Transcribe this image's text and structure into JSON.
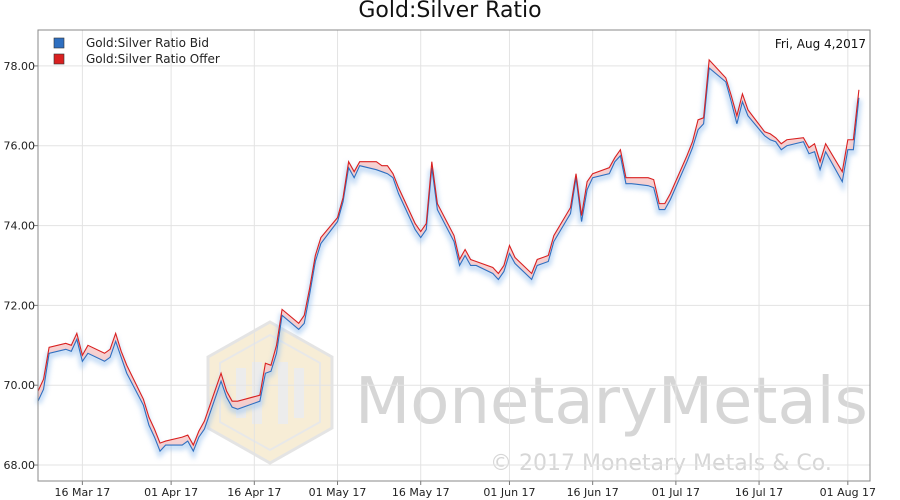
{
  "chart_data": {
    "type": "line",
    "title": "Gold:Silver Ratio",
    "date_label": "Fri, Aug 4,2017",
    "x_tick_labels": [
      "16 Mar 17",
      "01 Apr 17",
      "16 Apr 17",
      "01 May 17",
      "16 May 17",
      "01 Jun 17",
      "16 Jun 17",
      "01 Jul 17",
      "16 Jul 17",
      "01 Aug 17"
    ],
    "y_tick_labels": [
      "68.00",
      "70.00",
      "72.00",
      "74.00",
      "76.00",
      "78.00"
    ],
    "ylim": [
      67.6,
      78.9
    ],
    "xlim": [
      "2017-03-08",
      "2017-08-05"
    ],
    "grid": true,
    "legend_position": "top-left",
    "series": [
      {
        "name": "Gold:Silver Ratio Bid",
        "color": "#2e6fc0",
        "points": [
          [
            "2017-03-08",
            69.6
          ],
          [
            "2017-03-09",
            69.9
          ],
          [
            "2017-03-10",
            70.8
          ],
          [
            "2017-03-13",
            70.9
          ],
          [
            "2017-03-14",
            70.85
          ],
          [
            "2017-03-15",
            71.15
          ],
          [
            "2017-03-16",
            70.6
          ],
          [
            "2017-03-17",
            70.8
          ],
          [
            "2017-03-20",
            70.6
          ],
          [
            "2017-03-21",
            70.7
          ],
          [
            "2017-03-22",
            71.1
          ],
          [
            "2017-03-23",
            70.7
          ],
          [
            "2017-03-24",
            70.3
          ],
          [
            "2017-03-27",
            69.5
          ],
          [
            "2017-03-28",
            69.0
          ],
          [
            "2017-03-29",
            68.7
          ],
          [
            "2017-03-30",
            68.35
          ],
          [
            "2017-03-31",
            68.5
          ],
          [
            "2017-04-03",
            68.5
          ],
          [
            "2017-04-04",
            68.6
          ],
          [
            "2017-04-05",
            68.35
          ],
          [
            "2017-04-06",
            68.7
          ],
          [
            "2017-04-07",
            68.9
          ],
          [
            "2017-04-10",
            70.1
          ],
          [
            "2017-04-11",
            69.7
          ],
          [
            "2017-04-12",
            69.45
          ],
          [
            "2017-04-13",
            69.4
          ],
          [
            "2017-04-17",
            69.6
          ],
          [
            "2017-04-18",
            70.3
          ],
          [
            "2017-04-19",
            70.35
          ],
          [
            "2017-04-20",
            70.8
          ],
          [
            "2017-04-21",
            71.75
          ],
          [
            "2017-04-24",
            71.4
          ],
          [
            "2017-04-25",
            71.55
          ],
          [
            "2017-04-26",
            72.3
          ],
          [
            "2017-04-27",
            73.1
          ],
          [
            "2017-04-28",
            73.55
          ],
          [
            "2017-05-01",
            74.1
          ],
          [
            "2017-05-02",
            74.6
          ],
          [
            "2017-05-03",
            75.45
          ],
          [
            "2017-05-04",
            75.2
          ],
          [
            "2017-05-05",
            75.5
          ],
          [
            "2017-05-08",
            75.4
          ],
          [
            "2017-05-09",
            75.35
          ],
          [
            "2017-05-10",
            75.3
          ],
          [
            "2017-05-11",
            75.2
          ],
          [
            "2017-05-12",
            74.8
          ],
          [
            "2017-05-15",
            73.9
          ],
          [
            "2017-05-16",
            73.7
          ],
          [
            "2017-05-17",
            73.9
          ],
          [
            "2017-05-18",
            75.45
          ],
          [
            "2017-05-19",
            74.4
          ],
          [
            "2017-05-22",
            73.6
          ],
          [
            "2017-05-23",
            73.0
          ],
          [
            "2017-05-24",
            73.25
          ],
          [
            "2017-05-25",
            73.0
          ],
          [
            "2017-05-26",
            73.0
          ],
          [
            "2017-05-29",
            72.8
          ],
          [
            "2017-05-30",
            72.65
          ],
          [
            "2017-05-31",
            72.85
          ],
          [
            "2017-06-01",
            73.3
          ],
          [
            "2017-06-02",
            73.05
          ],
          [
            "2017-06-05",
            72.65
          ],
          [
            "2017-06-06",
            73.0
          ],
          [
            "2017-06-07",
            73.05
          ],
          [
            "2017-06-08",
            73.1
          ],
          [
            "2017-06-09",
            73.6
          ],
          [
            "2017-06-12",
            74.3
          ],
          [
            "2017-06-13",
            75.2
          ],
          [
            "2017-06-14",
            74.1
          ],
          [
            "2017-06-15",
            74.9
          ],
          [
            "2017-06-16",
            75.2
          ],
          [
            "2017-06-19",
            75.3
          ],
          [
            "2017-06-20",
            75.6
          ],
          [
            "2017-06-21",
            75.75
          ],
          [
            "2017-06-22",
            75.05
          ],
          [
            "2017-06-23",
            75.05
          ],
          [
            "2017-06-26",
            75.0
          ],
          [
            "2017-06-27",
            74.95
          ],
          [
            "2017-06-28",
            74.4
          ],
          [
            "2017-06-29",
            74.4
          ],
          [
            "2017-06-30",
            74.65
          ],
          [
            "2017-07-03",
            75.6
          ],
          [
            "2017-07-04",
            75.95
          ],
          [
            "2017-07-05",
            76.4
          ],
          [
            "2017-07-06",
            76.55
          ],
          [
            "2017-07-07",
            77.95
          ],
          [
            "2017-07-10",
            77.6
          ],
          [
            "2017-07-11",
            77.1
          ],
          [
            "2017-07-12",
            76.55
          ],
          [
            "2017-07-13",
            77.1
          ],
          [
            "2017-07-14",
            76.75
          ],
          [
            "2017-07-17",
            76.25
          ],
          [
            "2017-07-18",
            76.15
          ],
          [
            "2017-07-19",
            76.1
          ],
          [
            "2017-07-20",
            75.9
          ],
          [
            "2017-07-21",
            76.0
          ],
          [
            "2017-07-24",
            76.1
          ],
          [
            "2017-07-25",
            75.8
          ],
          [
            "2017-07-26",
            75.85
          ],
          [
            "2017-07-27",
            75.4
          ],
          [
            "2017-07-28",
            75.85
          ],
          [
            "2017-07-31",
            75.1
          ],
          [
            "2017-08-01",
            75.9
          ],
          [
            "2017-08-02",
            75.9
          ],
          [
            "2017-08-03",
            77.2
          ]
        ]
      },
      {
        "name": "Gold:Silver Ratio Offer",
        "color": "#d92020",
        "points": [
          [
            "2017-03-08",
            69.85
          ],
          [
            "2017-03-09",
            70.15
          ],
          [
            "2017-03-10",
            70.95
          ],
          [
            "2017-03-13",
            71.05
          ],
          [
            "2017-03-14",
            71.0
          ],
          [
            "2017-03-15",
            71.3
          ],
          [
            "2017-03-16",
            70.75
          ],
          [
            "2017-03-17",
            71.0
          ],
          [
            "2017-03-20",
            70.8
          ],
          [
            "2017-03-21",
            70.9
          ],
          [
            "2017-03-22",
            71.3
          ],
          [
            "2017-03-23",
            70.85
          ],
          [
            "2017-03-24",
            70.5
          ],
          [
            "2017-03-27",
            69.65
          ],
          [
            "2017-03-28",
            69.2
          ],
          [
            "2017-03-29",
            68.9
          ],
          [
            "2017-03-30",
            68.55
          ],
          [
            "2017-03-31",
            68.6
          ],
          [
            "2017-04-03",
            68.7
          ],
          [
            "2017-04-04",
            68.75
          ],
          [
            "2017-04-05",
            68.5
          ],
          [
            "2017-04-06",
            68.85
          ],
          [
            "2017-04-07",
            69.1
          ],
          [
            "2017-04-10",
            70.3
          ],
          [
            "2017-04-11",
            69.85
          ],
          [
            "2017-04-12",
            69.6
          ],
          [
            "2017-04-13",
            69.6
          ],
          [
            "2017-04-17",
            69.75
          ],
          [
            "2017-04-18",
            70.55
          ],
          [
            "2017-04-19",
            70.5
          ],
          [
            "2017-04-20",
            71.0
          ],
          [
            "2017-04-21",
            71.9
          ],
          [
            "2017-04-24",
            71.55
          ],
          [
            "2017-04-25",
            71.75
          ],
          [
            "2017-04-26",
            72.45
          ],
          [
            "2017-04-27",
            73.25
          ],
          [
            "2017-04-28",
            73.7
          ],
          [
            "2017-05-01",
            74.2
          ],
          [
            "2017-05-02",
            74.7
          ],
          [
            "2017-05-03",
            75.6
          ],
          [
            "2017-05-04",
            75.35
          ],
          [
            "2017-05-05",
            75.6
          ],
          [
            "2017-05-08",
            75.6
          ],
          [
            "2017-05-09",
            75.5
          ],
          [
            "2017-05-10",
            75.5
          ],
          [
            "2017-05-11",
            75.3
          ],
          [
            "2017-05-12",
            74.95
          ],
          [
            "2017-05-15",
            74.05
          ],
          [
            "2017-05-16",
            73.85
          ],
          [
            "2017-05-17",
            74.05
          ],
          [
            "2017-05-18",
            75.6
          ],
          [
            "2017-05-19",
            74.55
          ],
          [
            "2017-05-22",
            73.75
          ],
          [
            "2017-05-23",
            73.15
          ],
          [
            "2017-05-24",
            73.4
          ],
          [
            "2017-05-25",
            73.15
          ],
          [
            "2017-05-26",
            73.1
          ],
          [
            "2017-05-29",
            72.95
          ],
          [
            "2017-05-30",
            72.8
          ],
          [
            "2017-05-31",
            73.0
          ],
          [
            "2017-06-01",
            73.5
          ],
          [
            "2017-06-02",
            73.2
          ],
          [
            "2017-06-05",
            72.8
          ],
          [
            "2017-06-06",
            73.15
          ],
          [
            "2017-06-07",
            73.2
          ],
          [
            "2017-06-08",
            73.25
          ],
          [
            "2017-06-09",
            73.75
          ],
          [
            "2017-06-12",
            74.45
          ],
          [
            "2017-06-13",
            75.3
          ],
          [
            "2017-06-14",
            74.25
          ],
          [
            "2017-06-15",
            75.1
          ],
          [
            "2017-06-16",
            75.3
          ],
          [
            "2017-06-19",
            75.45
          ],
          [
            "2017-06-20",
            75.7
          ],
          [
            "2017-06-21",
            75.9
          ],
          [
            "2017-06-22",
            75.2
          ],
          [
            "2017-06-23",
            75.2
          ],
          [
            "2017-06-26",
            75.2
          ],
          [
            "2017-06-27",
            75.15
          ],
          [
            "2017-06-28",
            74.55
          ],
          [
            "2017-06-29",
            74.55
          ],
          [
            "2017-06-30",
            74.8
          ],
          [
            "2017-07-03",
            75.75
          ],
          [
            "2017-07-04",
            76.1
          ],
          [
            "2017-07-05",
            76.65
          ],
          [
            "2017-07-06",
            76.7
          ],
          [
            "2017-07-07",
            78.15
          ],
          [
            "2017-07-10",
            77.7
          ],
          [
            "2017-07-11",
            77.25
          ],
          [
            "2017-07-12",
            76.75
          ],
          [
            "2017-07-13",
            77.3
          ],
          [
            "2017-07-14",
            76.9
          ],
          [
            "2017-07-17",
            76.35
          ],
          [
            "2017-07-18",
            76.3
          ],
          [
            "2017-07-19",
            76.2
          ],
          [
            "2017-07-20",
            76.05
          ],
          [
            "2017-07-21",
            76.15
          ],
          [
            "2017-07-24",
            76.2
          ],
          [
            "2017-07-25",
            75.95
          ],
          [
            "2017-07-26",
            76.05
          ],
          [
            "2017-07-27",
            75.6
          ],
          [
            "2017-07-28",
            76.05
          ],
          [
            "2017-07-31",
            75.35
          ],
          [
            "2017-08-01",
            76.15
          ],
          [
            "2017-08-02",
            76.15
          ],
          [
            "2017-08-03",
            77.4
          ]
        ]
      }
    ]
  },
  "watermark": {
    "brand": "MonetaryMetals",
    "copyright": "© 2017 Monetary Metals & Co.",
    "logo_colors": [
      "#f5e7c8",
      "#dcdcdc"
    ]
  }
}
